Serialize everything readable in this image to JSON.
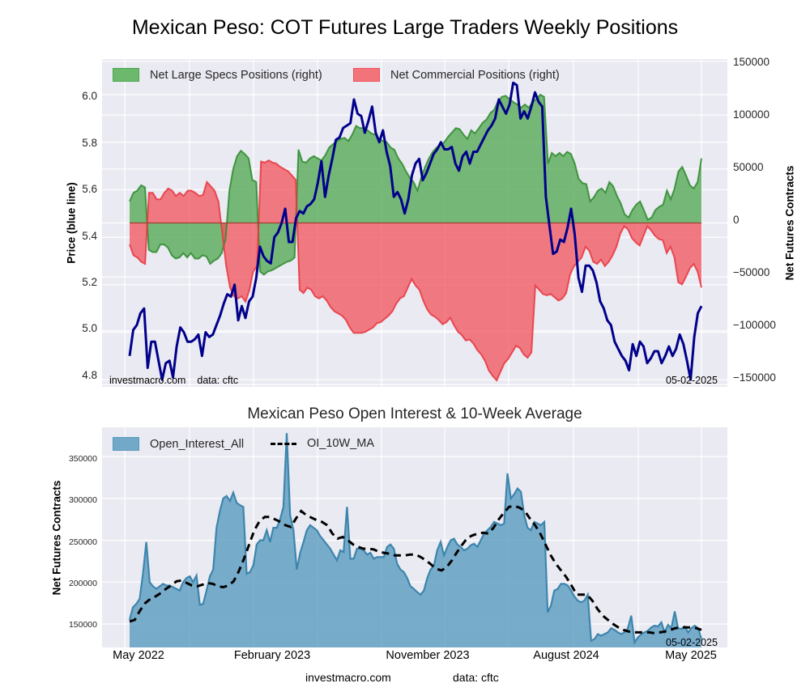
{
  "title": "Mexican Peso: COT Futures Large Traders Weekly Positions",
  "subtitle": "Mexican Peso Open Interest & 10-Week Average",
  "footer": {
    "site": "investmacro.com",
    "source": "data: cftc"
  },
  "chart_data": [
    {
      "type": "area",
      "title": "Mexican Peso: COT Futures Large Traders Weekly Positions",
      "ylabel_left": "Price (blue line)",
      "ylabel_right": "Net Futures Contracts",
      "ylim_left": [
        4.77,
        6.15
      ],
      "ylim_right": [
        -152000,
        152000
      ],
      "yticks_left": [
        "4.8",
        "5.0",
        "5.2",
        "5.4",
        "5.6",
        "5.8",
        "6.0"
      ],
      "yticks_right": [
        "−150000",
        "−100000",
        "−50000",
        "0",
        "50000",
        "100000",
        "150000"
      ],
      "x_range": [
        "2022-05-03",
        "2025-04-29"
      ],
      "grid": true,
      "legend": {
        "placement": "top-left",
        "items": [
          {
            "label": "Net Large Specs Positions (right)",
            "color": "#4CA64C"
          },
          {
            "label": "Net Commercial Positions (right)",
            "color": "#F2525B"
          }
        ]
      },
      "watermark_left": "investmacro.com    data: cftc",
      "date_stamp": "05-02-2025",
      "series": [
        {
          "name": "Net Large Specs Positions",
          "axis": "right",
          "color": "#2e8b2e",
          "values": [
            20000,
            28000,
            30000,
            35000,
            33000,
            -25000,
            -27000,
            -27000,
            -20000,
            -20000,
            -23000,
            -30000,
            -33000,
            -32000,
            -28000,
            -32000,
            -28000,
            -33000,
            -33000,
            -30000,
            -31000,
            -38000,
            -35000,
            -33000,
            -28000,
            -15000,
            30000,
            50000,
            62000,
            67000,
            64000,
            60000,
            40000,
            38000,
            -45000,
            -48000,
            -45000,
            -44000,
            -42000,
            -40000,
            -38000,
            -36000,
            -35000,
            -32000,
            68000,
            57000,
            56000,
            60000,
            62000,
            60000,
            58000,
            63000,
            70000,
            73000,
            76000,
            78000,
            79000,
            76000,
            82000,
            90000,
            88000,
            88000,
            86000,
            83000,
            82000,
            78000,
            76000,
            75000,
            70000,
            68000,
            60000,
            55000,
            48000,
            42000,
            38000,
            30000,
            42000,
            52000,
            60000,
            66000,
            70000,
            72000,
            75000,
            80000,
            84000,
            88000,
            87000,
            82000,
            78000,
            86000,
            83000,
            88000,
            93000,
            96000,
            102000,
            105000,
            113000,
            117000,
            118000,
            115000,
            112000,
            110000,
            107000,
            110000,
            107000,
            112000,
            115000,
            119000,
            117000,
            55000,
            65000,
            62000,
            65000,
            62000,
            66000,
            64000,
            55000,
            41000,
            37000,
            36000,
            20000,
            24000,
            30000,
            32000,
            28000,
            38000,
            34000,
            25000,
            18000,
            8000,
            5000,
            12000,
            17000,
            20000,
            12000,
            3000,
            5000,
            12000,
            15000,
            17000,
            30000,
            22000,
            32000,
            48000,
            52000,
            44000,
            35000,
            32000,
            38000,
            60000
          ]
        },
        {
          "name": "Net Commercial Positions",
          "axis": "right",
          "color": "#e8363f",
          "values": [
            -20000,
            -30000,
            -32000,
            -36000,
            -38000,
            28000,
            28000,
            22000,
            22000,
            28000,
            32000,
            30000,
            25000,
            28000,
            25000,
            30000,
            30000,
            28000,
            25000,
            26000,
            38000,
            34000,
            30000,
            20000,
            -10000,
            -40000,
            -60000,
            -68000,
            -70000,
            -68000,
            -73000,
            -62000,
            -45000,
            -40000,
            57000,
            56000,
            58000,
            56000,
            55000,
            52000,
            50000,
            48000,
            44000,
            40000,
            -62000,
            -65000,
            -60000,
            -62000,
            -68000,
            -70000,
            -68000,
            -72000,
            -78000,
            -82000,
            -84000,
            -86000,
            -90000,
            -97000,
            -102000,
            -102000,
            -102000,
            -101000,
            -99000,
            -97000,
            -93000,
            -92000,
            -89000,
            -86000,
            -82000,
            -75000,
            -70000,
            -68000,
            -60000,
            -52000,
            -58000,
            -62000,
            -72000,
            -80000,
            -85000,
            -87000,
            -90000,
            -94000,
            -92000,
            -88000,
            -95000,
            -101000,
            -104000,
            -109000,
            -108000,
            -112000,
            -118000,
            -122000,
            -128000,
            -137000,
            -142000,
            -146000,
            -138000,
            -130000,
            -126000,
            -120000,
            -114000,
            -116000,
            -122000,
            -125000,
            -120000,
            -58000,
            -62000,
            -66000,
            -67000,
            -66000,
            -69000,
            -72000,
            -70000,
            -65000,
            -48000,
            -40000,
            -36000,
            -32000,
            -22000,
            -26000,
            -36000,
            -38000,
            -34000,
            -40000,
            -36000,
            -30000,
            -22000,
            -10000,
            -3000,
            -6000,
            -14000,
            -18000,
            -21000,
            -12000,
            -3000,
            -7000,
            -12000,
            -15000,
            -16000,
            -28000,
            -22000,
            -32000,
            -55000,
            -57000,
            -50000,
            -42000,
            -38000,
            -45000,
            -60000
          ]
        },
        {
          "name": "Price",
          "axis": "left",
          "color": "#00008b",
          "values": [
            4.9,
            5.01,
            5.03,
            5.08,
            5.1,
            4.85,
            4.96,
            4.96,
            4.88,
            4.8,
            4.87,
            4.88,
            4.81,
            4.94,
            5.02,
            5.0,
            4.96,
            4.96,
            4.97,
            4.99,
            4.9,
            5.0,
            4.98,
            4.99,
            5.03,
            5.07,
            5.12,
            5.16,
            5.15,
            5.2,
            5.05,
            5.11,
            5.06,
            5.13,
            5.15,
            5.23,
            5.36,
            5.32,
            5.3,
            5.29,
            5.4,
            5.42,
            5.46,
            5.52,
            5.38,
            5.38,
            5.48,
            5.51,
            5.5,
            5.53,
            5.54,
            5.56,
            5.63,
            5.72,
            5.57,
            5.66,
            5.73,
            5.81,
            5.82,
            5.86,
            5.87,
            5.88,
            5.98,
            5.92,
            5.91,
            5.84,
            5.89,
            5.95,
            5.84,
            5.8,
            5.85,
            5.76,
            5.7,
            5.57,
            5.59,
            5.56,
            5.5,
            5.56,
            5.66,
            5.71,
            5.73,
            5.64,
            5.67,
            5.71,
            5.75,
            5.77,
            5.8,
            5.77,
            5.77,
            5.78,
            5.71,
            5.68,
            5.74,
            5.76,
            5.71,
            5.76,
            5.76,
            5.79,
            5.82,
            5.85,
            5.87,
            5.9,
            5.98,
            5.95,
            5.92,
            5.96,
            6.05,
            6.04,
            5.9,
            5.93,
            5.9,
            5.95,
            6.01,
            5.97,
            5.95,
            5.57,
            5.45,
            5.33,
            5.34,
            5.39,
            5.38,
            5.44,
            5.52,
            5.41,
            5.23,
            5.17,
            5.28,
            5.28,
            5.26,
            5.21,
            5.13,
            5.1,
            5.05,
            5.03,
            4.96,
            4.93,
            4.9,
            4.88,
            4.84,
            4.95,
            4.9,
            4.96,
            4.94,
            4.87,
            4.89,
            4.92,
            4.92,
            4.87,
            4.9,
            4.94,
            4.9,
            4.93,
            4.99,
            4.95,
            4.88,
            4.8,
            4.98,
            5.08,
            5.11
          ]
        }
      ]
    },
    {
      "type": "area",
      "title": "Mexican Peso Open Interest & 10-Week Average",
      "ylabel": "Net Futures Contracts",
      "ylim": [
        122000,
        385000
      ],
      "yticks": [
        "150000",
        "200000",
        "250000",
        "300000",
        "350000"
      ],
      "xticks": [
        "May 2022",
        "February 2023",
        "November 2023",
        "August 2024",
        "May 2025"
      ],
      "x_range": [
        "2022-05-03",
        "2025-04-29"
      ],
      "grid": true,
      "legend": {
        "placement": "top-left",
        "items": [
          {
            "label": "Open_Interest_All",
            "color": "#5a9bbf"
          },
          {
            "label": "OI_10W_MA",
            "color": "#000000",
            "style": "dashed"
          }
        ]
      },
      "date_stamp": "05-02-2025",
      "series": [
        {
          "name": "Open_Interest_All",
          "values": [
            155000,
            170000,
            174000,
            180000,
            210000,
            248000,
            200000,
            195000,
            192000,
            195000,
            198000,
            196000,
            196000,
            194000,
            192000,
            190000,
            200000,
            205000,
            207000,
            200000,
            208000,
            173000,
            174000,
            190000,
            207000,
            215000,
            265000,
            285000,
            300000,
            303000,
            297000,
            307000,
            295000,
            292000,
            290000,
            210000,
            212000,
            220000,
            245000,
            250000,
            250000,
            262000,
            248000,
            265000,
            265000,
            275000,
            290000,
            378000,
            280000,
            262000,
            215000,
            235000,
            248000,
            262000,
            268000,
            265000,
            262000,
            255000,
            250000,
            245000,
            240000,
            233000,
            226000,
            238000,
            236000,
            290000,
            228000,
            228000,
            240000,
            240000,
            238000,
            233000,
            235000,
            228000,
            230000,
            230000,
            230000,
            242000,
            245000,
            240000,
            222000,
            215000,
            212000,
            205000,
            195000,
            192000,
            188000,
            185000,
            190000,
            205000,
            215000,
            220000,
            238000,
            248000,
            232000,
            242000,
            250000,
            252000,
            245000,
            242000,
            238000,
            240000,
            244000,
            246000,
            242000,
            250000,
            258000,
            262000,
            266000,
            272000,
            270000,
            268000,
            270000,
            330000,
            300000,
            305000,
            312000,
            308000,
            280000,
            265000,
            262000,
            272000,
            270000,
            268000,
            272000,
            164000,
            172000,
            190000,
            192000,
            198000,
            198000,
            196000,
            190000,
            183000,
            178000,
            176000,
            178000,
            185000,
            130000,
            132000,
            138000,
            136000,
            138000,
            140000,
            145000,
            143000,
            140000,
            138000,
            140000,
            145000,
            160000,
            128000,
            134000,
            138000,
            140000,
            142000,
            146000,
            148000,
            147000,
            152000,
            140000,
            149000,
            145000,
            165000,
            145000,
            144000,
            147000,
            140000,
            145000,
            148000,
            145000,
            132000
          ]
        },
        {
          "name": "OI_10W_MA",
          "values": [
            153000,
            155000,
            166000,
            175000,
            180000,
            183000,
            187000,
            192000,
            196000,
            201000,
            202000,
            199000,
            196000,
            195000,
            197000,
            199000,
            198000,
            195000,
            194000,
            196000,
            201000,
            213000,
            228000,
            245000,
            262000,
            273000,
            278000,
            278000,
            275000,
            272000,
            268000,
            266000,
            276000,
            285000,
            280000,
            277000,
            274000,
            272000,
            268000,
            258000,
            252000,
            254000,
            250000,
            245000,
            242000,
            240000,
            240000,
            239000,
            236000,
            235000,
            234000,
            232000,
            232000,
            232000,
            233000,
            233000,
            230000,
            226000,
            221000,
            216000,
            214000,
            218000,
            226000,
            236000,
            245000,
            253000,
            256000,
            258000,
            259000,
            258000,
            265000,
            275000,
            283000,
            290000,
            291000,
            289000,
            285000,
            276000,
            268000,
            258000,
            245000,
            232000,
            222000,
            214000,
            206000,
            196000,
            185000,
            185000,
            185000,
            178000,
            168000,
            160000,
            155000,
            150000,
            146000,
            143000,
            141000,
            140000,
            140000,
            140000,
            140000,
            139000,
            140000,
            141000,
            143000,
            145000,
            146000,
            146000,
            146000,
            145000,
            143000
          ]
        }
      ]
    }
  ]
}
